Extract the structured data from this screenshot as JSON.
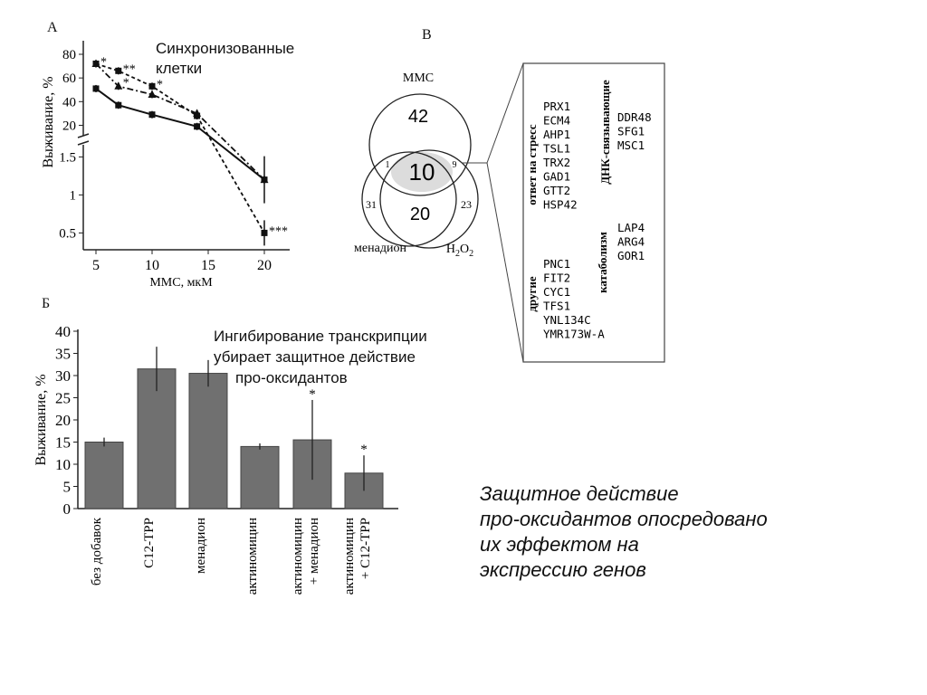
{
  "chart_data": [
    {
      "type": "line",
      "panel_label": "А",
      "annotation": [
        "Синхронизованные",
        "клетки"
      ],
      "xlabel": "ММС, мкМ",
      "ylabel": "Выживание, %",
      "xticks": [
        "5",
        "10",
        "15",
        "20"
      ],
      "yticks_upper": [
        "20",
        "40",
        "60",
        "80"
      ],
      "yticks_lower": [
        "0.5",
        "1",
        "1.5"
      ],
      "y_axis_break": true,
      "series": [
        {
          "values": [
            {
              "x": 5,
              "y": 72
            },
            {
              "x": 7,
              "y": 66
            },
            {
              "x": 10,
              "y": 53
            },
            {
              "x": 14,
              "y": 28
            },
            {
              "x": 20,
              "y": 0.5
            }
          ],
          "significance": [
            "*",
            "**",
            "*",
            "",
            "***"
          ]
        },
        {
          "values": [
            {
              "x": 5,
              "y": 72
            },
            {
              "x": 7,
              "y": 53
            },
            {
              "x": 10,
              "y": 46
            },
            {
              "x": 14,
              "y": 30
            },
            {
              "x": 20,
              "y": 1.2
            }
          ],
          "significance": [
            "",
            "*",
            "",
            "",
            ""
          ]
        },
        {
          "values": [
            {
              "x": 5,
              "y": 51
            },
            {
              "x": 7,
              "y": 37
            },
            {
              "x": 10,
              "y": 29
            },
            {
              "x": 14,
              "y": 19
            },
            {
              "x": 20,
              "y": 1.2
            }
          ],
          "significance": [
            "",
            "",
            "",
            "",
            ""
          ]
        }
      ]
    },
    {
      "type": "bar",
      "panel_label": "Б",
      "annotation": [
        "Ингибирование транскрипции",
        "убирает защитное действие",
        "про-оксидантов"
      ],
      "ylabel": "Выживание, %",
      "ylim": [
        0,
        40
      ],
      "yticks": [
        "0",
        "5",
        "10",
        "15",
        "20",
        "25",
        "30",
        "35",
        "40"
      ],
      "categories": [
        [
          "без добавок"
        ],
        [
          "C12-TPP"
        ],
        [
          "менадион"
        ],
        [
          "актиномицин"
        ],
        [
          "актиномицин",
          "+ менадион"
        ],
        [
          "актиномицин",
          "+ C12-TPP"
        ]
      ],
      "values": [
        15,
        31.5,
        30.5,
        14,
        15.5,
        8
      ],
      "errors": [
        1,
        5,
        3,
        0.7,
        9,
        4
      ],
      "significance": [
        "",
        "",
        "",
        "",
        "*",
        "*"
      ]
    },
    {
      "type": "diagram",
      "panel_label": "В",
      "venn": {
        "sets": [
          "ММС",
          "менадион",
          "H2O2"
        ],
        "counts": {
          "mms_only": "42",
          "mms_men": "1",
          "center": "10",
          "mms_h2o2": "9",
          "men_only": "31",
          "men_h2o2": "20",
          "h2o2_only": "23"
        }
      },
      "gene_groups": [
        {
          "label": "ответ на стресс",
          "genes": [
            "PRX1",
            "ECM4",
            "AHP1",
            "TSL1",
            "TRX2",
            "GAD1",
            "GTT2",
            "HSP42"
          ]
        },
        {
          "label": "ДНК-связывающие",
          "genes": [
            "DDR48",
            "SFG1",
            "MSC1"
          ]
        },
        {
          "label": "катаболизм",
          "genes": [
            "LAP4",
            "ARG4",
            "GOR1"
          ]
        },
        {
          "label": "другие",
          "genes": [
            "PNC1",
            "FIT2",
            "CYC1",
            "TFS1",
            "YNL134C",
            "YMR173W-A"
          ]
        }
      ]
    }
  ],
  "conclusion": [
    "Защитное действие",
    "про-оксидантов опосредовано",
    "их эффектом на",
    "экспрессию генов"
  ]
}
